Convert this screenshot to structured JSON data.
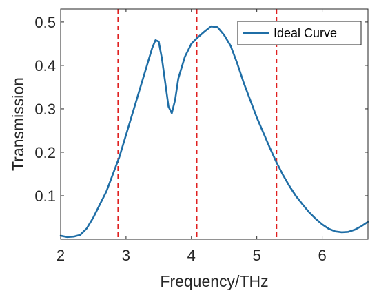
{
  "chart_data": {
    "type": "line",
    "title": "",
    "xlabel": "Frequency/THz",
    "ylabel": "Transmission",
    "xlim": [
      2,
      6.7
    ],
    "ylim": [
      0,
      0.53
    ],
    "xticks": [
      2,
      3,
      4,
      5,
      6
    ],
    "yticks": [
      0.1,
      0.2,
      0.3,
      0.4,
      0.5
    ],
    "xtick_labels": [
      "2",
      "3",
      "4",
      "5",
      "6"
    ],
    "ytick_labels": [
      "0.1",
      "0.2",
      "0.3",
      "0.4",
      "0.5"
    ],
    "grid": false,
    "legend_position": "top-right",
    "series": [
      {
        "name": "Ideal Curve",
        "color": "#1f6ea6",
        "x": [
          2.0,
          2.1,
          2.2,
          2.3,
          2.4,
          2.5,
          2.6,
          2.7,
          2.8,
          2.9,
          3.0,
          3.1,
          3.2,
          3.3,
          3.4,
          3.45,
          3.5,
          3.55,
          3.6,
          3.65,
          3.7,
          3.75,
          3.8,
          3.9,
          4.0,
          4.1,
          4.2,
          4.3,
          4.4,
          4.5,
          4.6,
          4.7,
          4.8,
          4.9,
          5.0,
          5.1,
          5.2,
          5.3,
          5.4,
          5.5,
          5.6,
          5.7,
          5.8,
          5.9,
          6.0,
          6.1,
          6.2,
          6.3,
          6.4,
          6.5,
          6.6,
          6.7
        ],
        "y": [
          0.008,
          0.005,
          0.006,
          0.01,
          0.025,
          0.05,
          0.08,
          0.11,
          0.15,
          0.19,
          0.24,
          0.29,
          0.34,
          0.39,
          0.44,
          0.458,
          0.455,
          0.415,
          0.36,
          0.305,
          0.29,
          0.32,
          0.37,
          0.42,
          0.45,
          0.465,
          0.478,
          0.49,
          0.488,
          0.47,
          0.445,
          0.405,
          0.36,
          0.32,
          0.28,
          0.245,
          0.21,
          0.177,
          0.148,
          0.122,
          0.099,
          0.08,
          0.062,
          0.047,
          0.034,
          0.024,
          0.018,
          0.016,
          0.017,
          0.022,
          0.03,
          0.04
        ]
      }
    ],
    "vlines": {
      "color": "#e02020",
      "style": "dashed",
      "x": [
        2.88,
        4.08,
        5.3
      ]
    }
  }
}
